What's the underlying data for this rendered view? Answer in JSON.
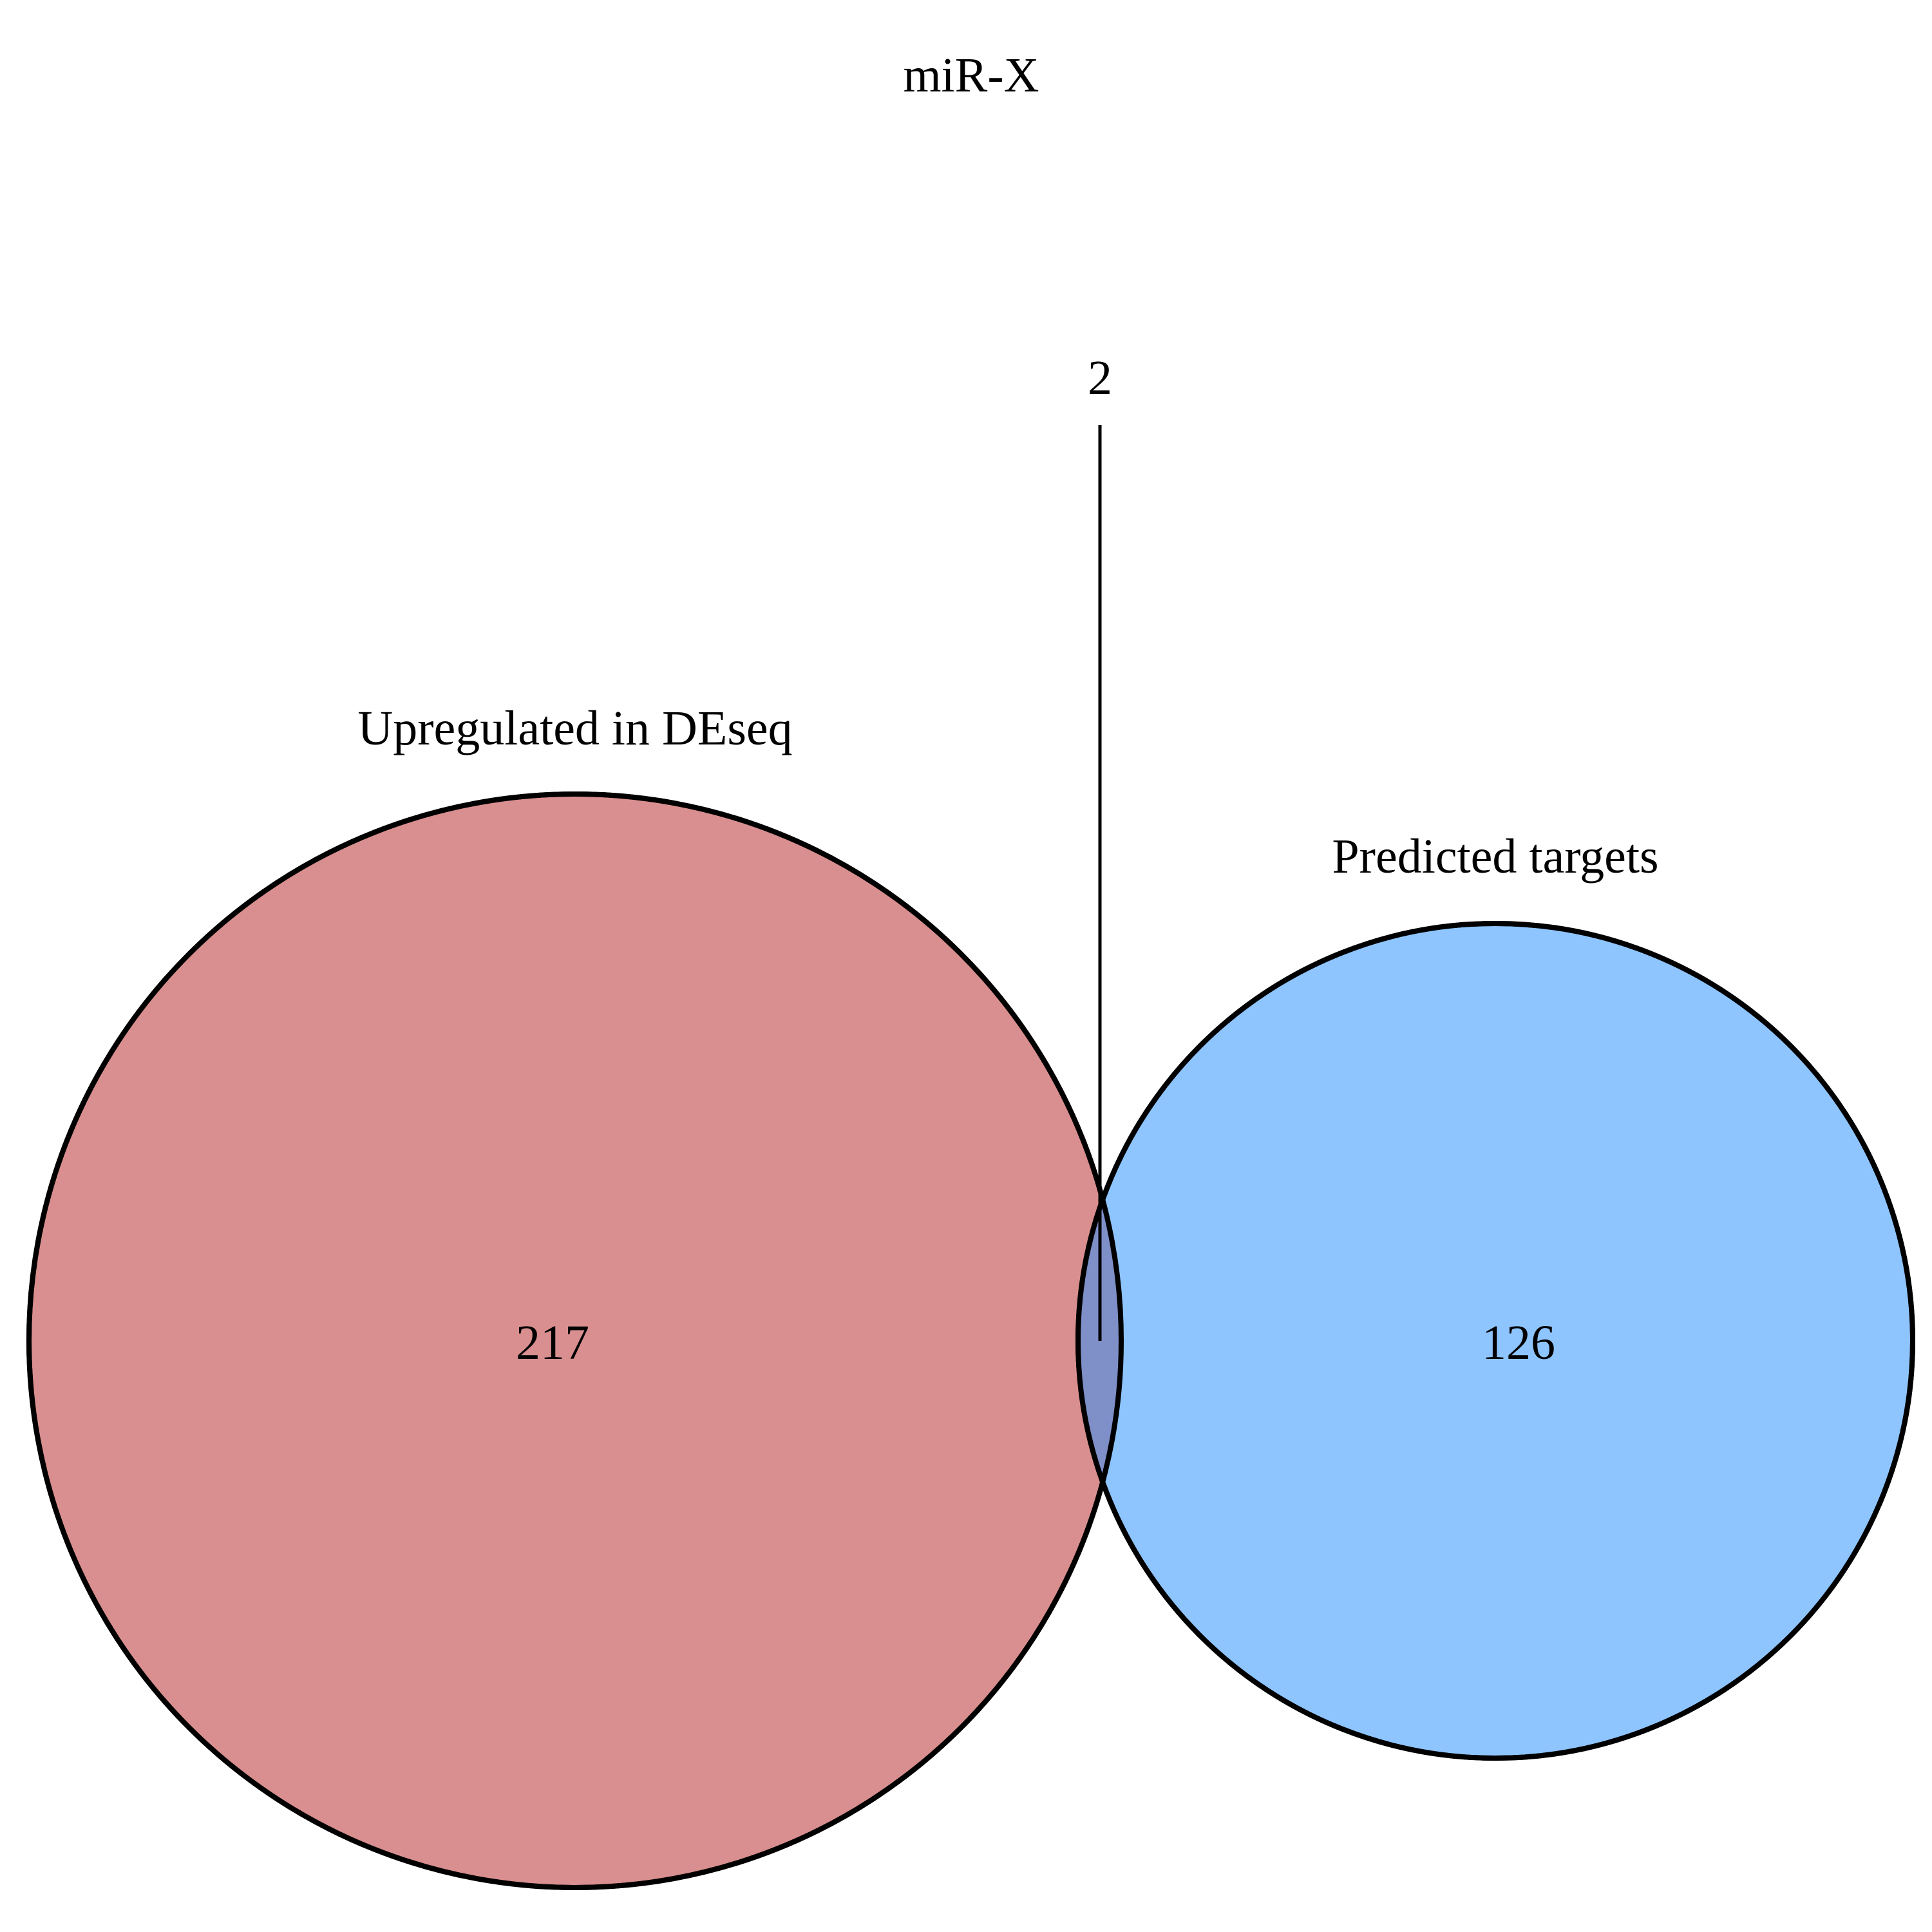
{
  "diagram": {
    "type": "venn",
    "title": "miR-X",
    "sets": [
      {
        "name": "Upregulated in DEseq",
        "count_only": "217",
        "fill": "#d98f8f",
        "stroke": "#000000"
      },
      {
        "name": "Predicted targets",
        "count_only": "126",
        "fill": "#8fc5ff",
        "stroke": "#000000"
      }
    ],
    "intersection": {
      "count": "2",
      "fill": "#7f8fc8"
    }
  }
}
